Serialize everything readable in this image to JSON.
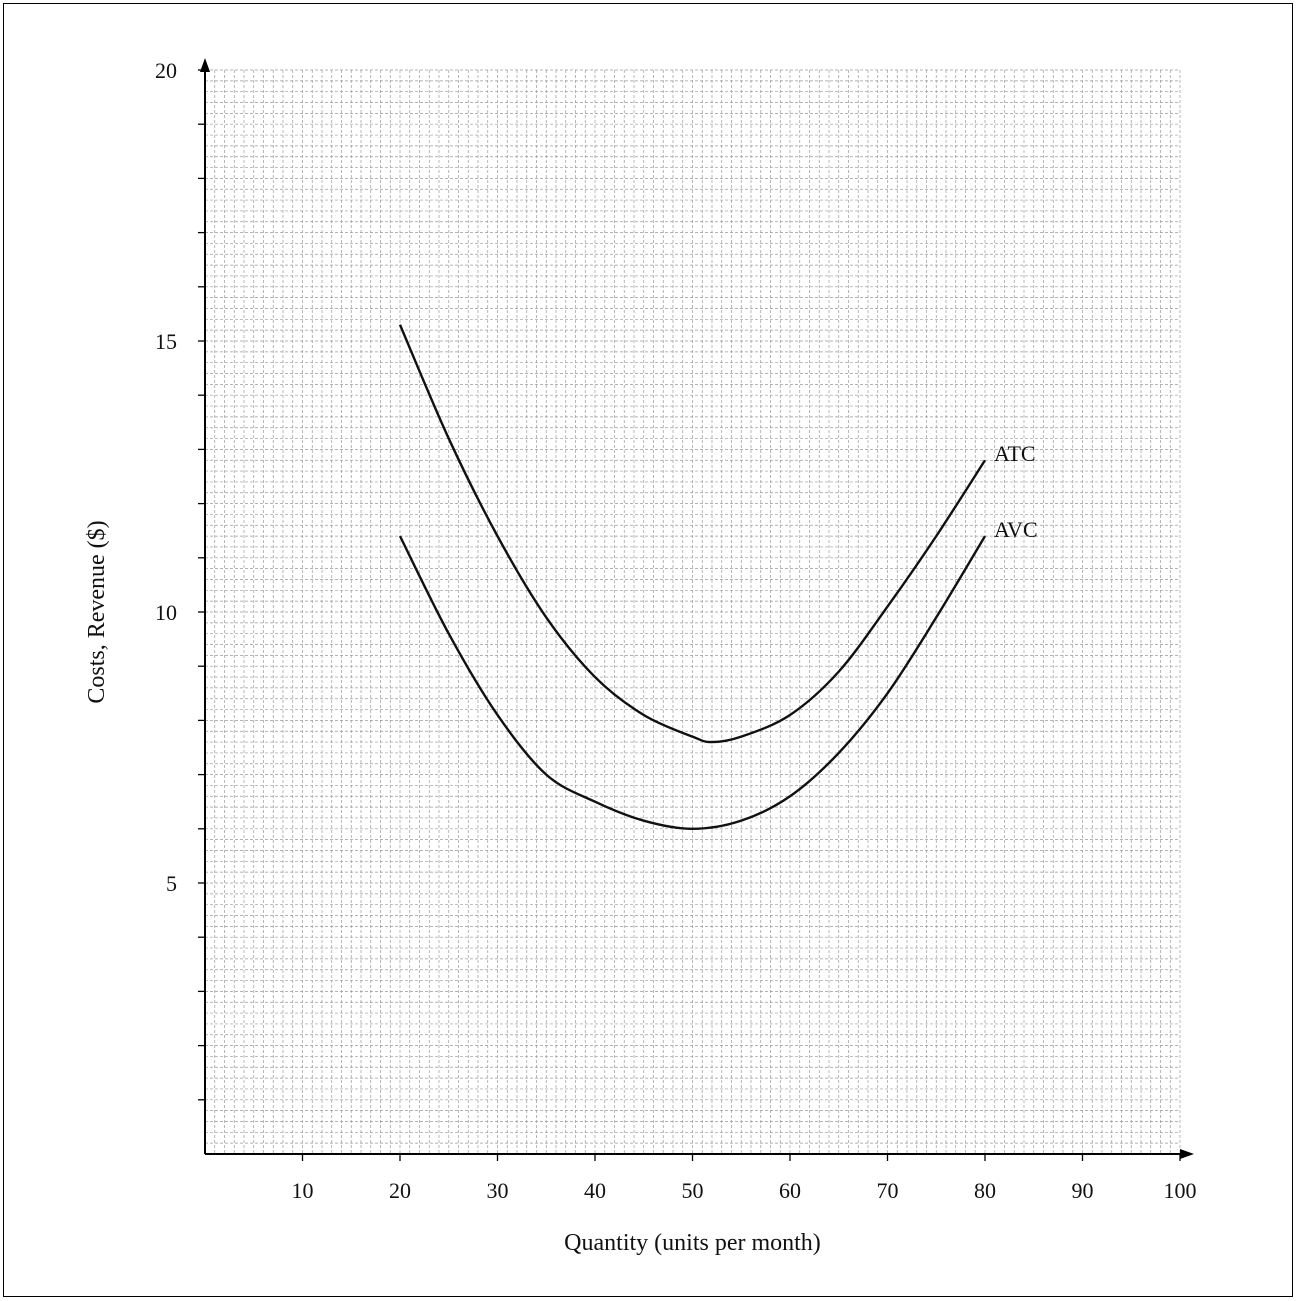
{
  "chart_data": {
    "type": "line",
    "title": "",
    "xlabel": "Quantity (units per month)",
    "ylabel": "Costs, Revenue ($)",
    "xlim": [
      0,
      100
    ],
    "ylim": [
      0,
      20
    ],
    "x_ticks": [
      10,
      20,
      30,
      40,
      50,
      60,
      70,
      80,
      90,
      100
    ],
    "x_tick_labels": [
      "10",
      "20",
      "30",
      "40",
      "50",
      "60",
      "70",
      "80",
      "90",
      "100"
    ],
    "y_ticks": [
      5,
      10,
      15,
      20
    ],
    "y_tick_labels": [
      "5",
      "10",
      "15",
      "20"
    ],
    "grid": true,
    "grid_step": {
      "x": 1,
      "y": 0.2
    },
    "series": [
      {
        "name": "ATC",
        "x": [
          20,
          25,
          30,
          35,
          40,
          45,
          50,
          52,
          55,
          60,
          65,
          70,
          75,
          80
        ],
        "y": [
          15.3,
          13.2,
          11.4,
          9.9,
          8.8,
          8.1,
          7.7,
          7.6,
          7.7,
          8.1,
          8.9,
          10.1,
          11.4,
          12.8
        ]
      },
      {
        "name": "AVC",
        "x": [
          20,
          25,
          30,
          35,
          40,
          45,
          50,
          55,
          60,
          65,
          70,
          75,
          80
        ],
        "y": [
          11.4,
          9.6,
          8.1,
          7.0,
          6.5,
          6.15,
          6.0,
          6.15,
          6.6,
          7.4,
          8.5,
          9.9,
          11.4
        ]
      }
    ],
    "colors": {
      "curve": "#111111",
      "grid": "#9a9a9a",
      "axis": "#000000"
    }
  }
}
